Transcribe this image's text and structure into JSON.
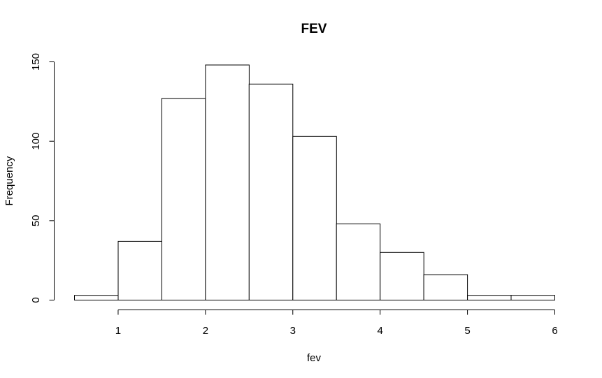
{
  "chart_data": {
    "type": "bar",
    "title": "FEV",
    "xlabel": "fev",
    "ylabel": "Frequency",
    "bin_edges": [
      0.5,
      1.0,
      1.5,
      2.0,
      2.5,
      3.0,
      3.5,
      4.0,
      4.5,
      5.0,
      5.5,
      6.0
    ],
    "values": [
      3,
      37,
      127,
      148,
      136,
      103,
      48,
      30,
      16,
      3,
      3
    ],
    "xlim": [
      0.5,
      6.0
    ],
    "ylim": [
      0,
      150
    ],
    "x_ticks": [
      1,
      2,
      3,
      4,
      5,
      6
    ],
    "y_ticks": [
      0,
      50,
      100,
      150
    ],
    "grid": false,
    "legend": "none",
    "colors": {
      "bar_fill": "#ffffff",
      "bar_stroke": "#000000"
    }
  }
}
